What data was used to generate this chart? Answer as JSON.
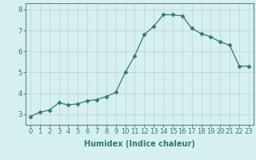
{
  "x": [
    0,
    1,
    2,
    3,
    4,
    5,
    6,
    7,
    8,
    9,
    10,
    11,
    12,
    13,
    14,
    15,
    16,
    17,
    18,
    19,
    20,
    21,
    22,
    23
  ],
  "y": [
    2.9,
    3.1,
    3.2,
    3.55,
    3.45,
    3.5,
    3.65,
    3.7,
    3.85,
    4.05,
    5.0,
    5.8,
    6.8,
    7.2,
    7.75,
    7.75,
    7.7,
    7.1,
    6.85,
    6.7,
    6.45,
    6.3,
    5.3,
    5.3
  ],
  "line_color": "#2e7d6e",
  "marker": "D",
  "marker_size": 2.5,
  "bg_color": "#d6f0f0",
  "grid_color": "#c0d8d8",
  "xlabel": "Humidex (Indice chaleur)",
  "xlabel_fontsize": 7,
  "tick_fontsize": 6,
  "ylim": [
    2.5,
    8.3
  ],
  "xlim": [
    -0.5,
    23.5
  ],
  "yticks": [
    3,
    4,
    5,
    6,
    7,
    8
  ],
  "xticks": [
    0,
    1,
    2,
    3,
    4,
    5,
    6,
    7,
    8,
    9,
    10,
    11,
    12,
    13,
    14,
    15,
    16,
    17,
    18,
    19,
    20,
    21,
    22,
    23
  ]
}
